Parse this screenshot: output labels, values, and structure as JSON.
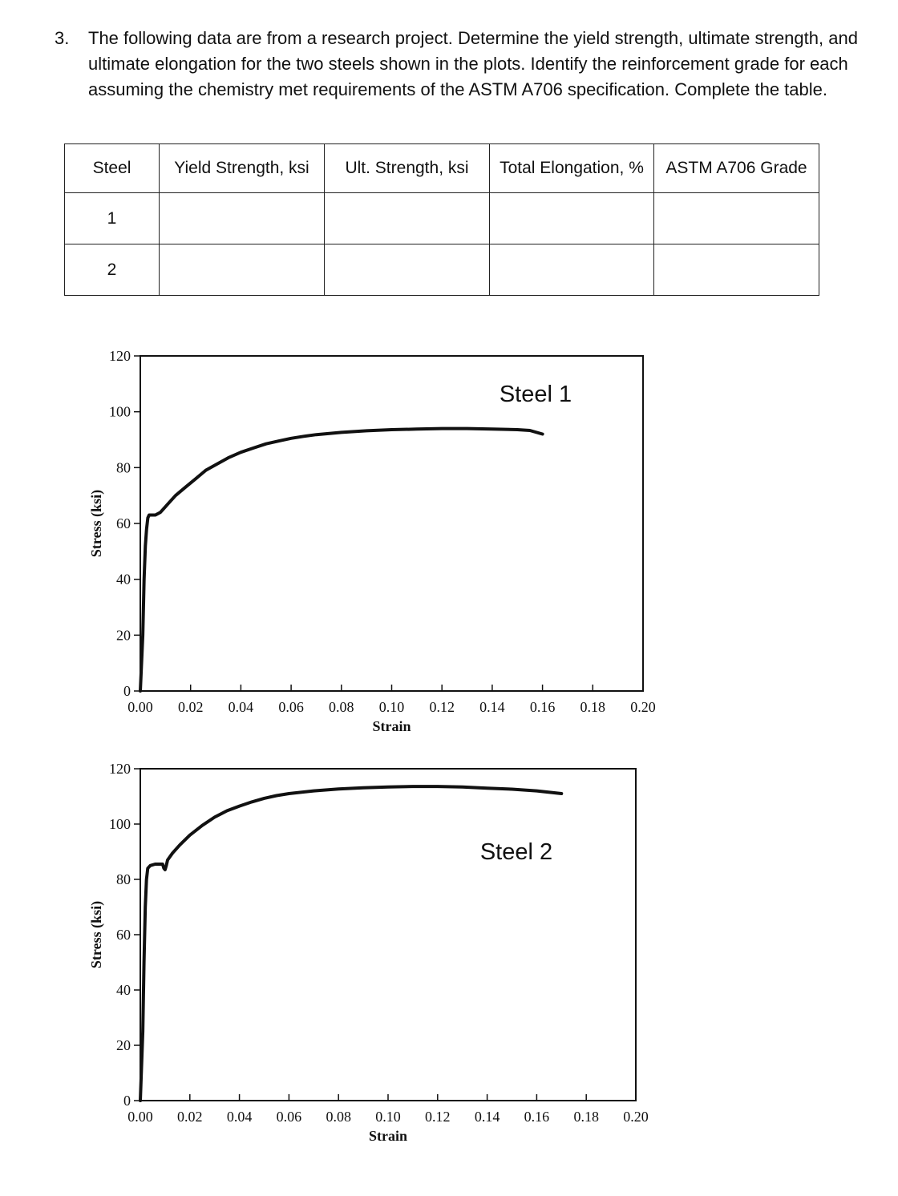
{
  "question": {
    "number": "3.",
    "text": "The following data are from a research project. Determine the yield strength, ultimate strength, and ultimate elongation for the two steels shown in the plots. Identify the reinforcement grade for each assuming the chemistry met requirements of the ASTM A706 specification. Complete the table."
  },
  "table": {
    "headers": [
      "Steel",
      "Yield Strength, ksi",
      "Ult. Strength, ksi",
      "Total Elongation, %",
      "ASTM A706 Grade"
    ],
    "rows": [
      [
        "1",
        "",
        "",
        "",
        ""
      ],
      [
        "2",
        "",
        "",
        "",
        ""
      ]
    ]
  },
  "chart_data": [
    {
      "type": "line",
      "series_label": "Steel 1",
      "xlabel": "Strain",
      "ylabel": "Stress (ksi)",
      "xlim": [
        0,
        0.2
      ],
      "ylim": [
        0,
        120
      ],
      "x_ticks": [
        "0.00",
        "0.02",
        "0.04",
        "0.06",
        "0.08",
        "0.10",
        "0.12",
        "0.14",
        "0.16",
        "0.18",
        "0.20"
      ],
      "y_ticks": [
        "0",
        "20",
        "40",
        "60",
        "80",
        "100",
        "120"
      ],
      "series": [
        {
          "x": [
            0,
            0.001,
            0.0015,
            0.002,
            0.0025,
            0.003,
            0.0035,
            0.0045,
            0.006,
            0.008,
            0.011,
            0.014,
            0.018,
            0.022,
            0.026,
            0.03,
            0.035,
            0.04,
            0.045,
            0.05,
            0.055,
            0.06,
            0.065,
            0.07,
            0.08,
            0.09,
            0.1,
            0.11,
            0.12,
            0.13,
            0.14,
            0.15,
            0.155,
            0.16
          ],
          "y": [
            0,
            20,
            40,
            52,
            58,
            62,
            63,
            63,
            63,
            64,
            67,
            70,
            73,
            76,
            79,
            81,
            83.5,
            85.5,
            87,
            88.5,
            89.5,
            90.5,
            91.2,
            91.8,
            92.6,
            93.2,
            93.6,
            93.8,
            94,
            94,
            93.8,
            93.6,
            93.3,
            92
          ]
        }
      ]
    },
    {
      "type": "line",
      "series_label": "Steel 2",
      "xlabel": "Strain",
      "ylabel": "Stress (ksi)",
      "xlim": [
        0,
        0.2
      ],
      "ylim": [
        0,
        120
      ],
      "x_ticks": [
        "0.00",
        "0.02",
        "0.04",
        "0.06",
        "0.08",
        "0.10",
        "0.12",
        "0.14",
        "0.16",
        "0.18",
        "0.20"
      ],
      "y_ticks": [
        "0",
        "20",
        "40",
        "60",
        "80",
        "100",
        "120"
      ],
      "series": [
        {
          "x": [
            0,
            0.001,
            0.0015,
            0.002,
            0.0025,
            0.003,
            0.004,
            0.006,
            0.008,
            0.009,
            0.0095,
            0.01,
            0.0105,
            0.011,
            0.013,
            0.016,
            0.02,
            0.025,
            0.03,
            0.035,
            0.04,
            0.045,
            0.05,
            0.055,
            0.06,
            0.07,
            0.08,
            0.09,
            0.1,
            0.11,
            0.12,
            0.13,
            0.14,
            0.15,
            0.16,
            0.17
          ],
          "y": [
            0,
            25,
            50,
            70,
            80,
            84,
            85,
            85.5,
            85.5,
            85.5,
            84,
            83.5,
            85,
            87,
            89.5,
            92.5,
            96,
            99.5,
            102.5,
            104.8,
            106.5,
            108,
            109.3,
            110.3,
            111,
            112,
            112.7,
            113.1,
            113.4,
            113.6,
            113.6,
            113.4,
            113,
            112.6,
            112,
            111
          ]
        }
      ]
    }
  ]
}
